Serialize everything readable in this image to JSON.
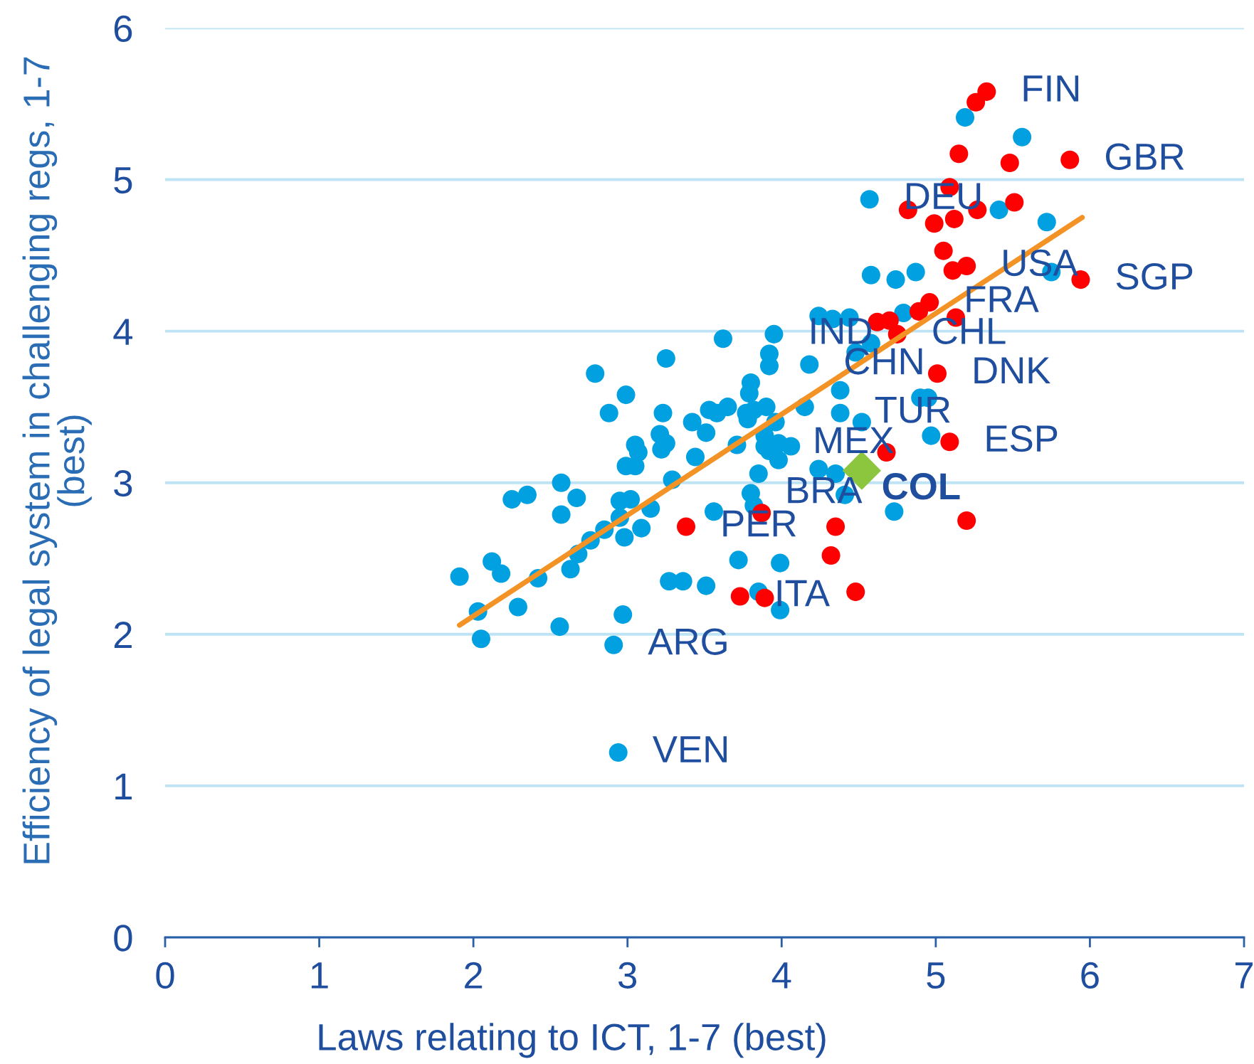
{
  "chart_data": {
    "type": "scatter",
    "xlabel": "Laws relating to ICT, 1-7 (best)",
    "ylabel": "Efficiency of legal system in challenging regs, 1-7 (best)",
    "xlim": [
      0,
      7
    ],
    "ylim": [
      0,
      6
    ],
    "xticks": [
      0,
      1,
      2,
      3,
      4,
      5,
      6,
      7
    ],
    "yticks": [
      0,
      1,
      2,
      3,
      4,
      5,
      6
    ],
    "grid": "y",
    "marker": "circle",
    "series": [
      {
        "color": "#00a0e1",
        "x": [
          3.62,
          3.95,
          3.25,
          3.92,
          3.92,
          4.18,
          2.79,
          2.99,
          3.8,
          3.79,
          2.88,
          3.23,
          3.53,
          3.58,
          3.65,
          3.42,
          3.51,
          3.77,
          3.82,
          3.9,
          3.78,
          3.96,
          4.15,
          3.21,
          3.25,
          3.22,
          3.05,
          3.07,
          2.99,
          3.05,
          3.44,
          3.71,
          3.89,
          3.89,
          3.98,
          4.06,
          3.98,
          3.92,
          3.85,
          4.24,
          3.29,
          2.57,
          2.67,
          2.25,
          2.35,
          2.57,
          2.95,
          3.02,
          2.95,
          3.15,
          3.09,
          2.98,
          2.85,
          2.76,
          2.68,
          2.63,
          2.42,
          2.12,
          2.18,
          1.91,
          2.03,
          2.29,
          2.56,
          2.05,
          2.97,
          2.91,
          3.56,
          3.8,
          3.82,
          3.72,
          3.99,
          3.27,
          3.36,
          3.51,
          3.85,
          3.99,
          2.94,
          4.35,
          4.41,
          4.38,
          4.38,
          4.52,
          4.9,
          4.95,
          4.97,
          4.73,
          5.19,
          5.56,
          4.57,
          5.41,
          5.72,
          4.58,
          4.74,
          4.87,
          5.75,
          4.79,
          4.24,
          4.33,
          4.44,
          4.58,
          4.48
        ],
        "values": [
          3.95,
          3.98,
          3.82,
          3.85,
          3.77,
          3.78,
          3.72,
          3.58,
          3.66,
          3.59,
          3.46,
          3.46,
          3.48,
          3.46,
          3.5,
          3.4,
          3.33,
          3.46,
          3.48,
          3.5,
          3.42,
          3.4,
          3.5,
          3.32,
          3.26,
          3.22,
          3.25,
          3.2,
          3.11,
          3.11,
          3.17,
          3.25,
          3.31,
          3.24,
          3.26,
          3.24,
          3.15,
          3.21,
          3.06,
          3.09,
          3.02,
          3.0,
          2.9,
          2.89,
          2.92,
          2.79,
          2.88,
          2.89,
          2.77,
          2.83,
          2.7,
          2.64,
          2.69,
          2.62,
          2.53,
          2.43,
          2.37,
          2.48,
          2.4,
          2.38,
          2.15,
          2.18,
          2.05,
          1.97,
          2.13,
          1.93,
          2.81,
          2.93,
          2.85,
          2.49,
          2.47,
          2.35,
          2.35,
          2.32,
          2.28,
          2.16,
          1.22,
          3.06,
          2.92,
          3.61,
          3.46,
          3.4,
          3.56,
          3.56,
          3.31,
          2.81,
          5.41,
          5.28,
          4.87,
          4.8,
          4.72,
          4.37,
          4.34,
          4.39,
          4.39,
          4.12,
          4.1,
          4.08,
          4.09,
          3.92,
          3.86
        ]
      },
      {
        "color": "#ff0000",
        "x": [
          5.33,
          5.26,
          5.15,
          5.48,
          5.87,
          5.09,
          4.82,
          5.27,
          5.51,
          4.99,
          5.12,
          5.05,
          5.11,
          5.2,
          5.94,
          4.96,
          4.89,
          5.13,
          4.62,
          4.7,
          4.75,
          5.01,
          5.09,
          4.68,
          3.87,
          3.38,
          4.35,
          5.2,
          4.32,
          3.73,
          3.89,
          4.48
        ],
        "values": [
          5.58,
          5.51,
          5.17,
          5.11,
          5.13,
          4.95,
          4.8,
          4.8,
          4.85,
          4.71,
          4.74,
          4.53,
          4.4,
          4.43,
          4.34,
          4.19,
          4.13,
          4.09,
          4.06,
          4.07,
          3.98,
          3.72,
          3.27,
          3.2,
          2.8,
          2.71,
          2.71,
          2.75,
          2.52,
          2.25,
          2.24,
          2.28
        ]
      },
      {
        "type": "line",
        "color": "#f39325",
        "marker": "none",
        "line_style": "solid",
        "x": [
          1.91,
          5.95
        ],
        "values": [
          2.06,
          4.75
        ]
      },
      {
        "name": "COL",
        "color": "#8cc63f",
        "marker": "diamond",
        "x": [
          4.52
        ],
        "values": [
          3.08
        ]
      }
    ],
    "annotations": [
      {
        "text": "FIN",
        "x": 5.33,
        "y": 5.58
      },
      {
        "text": "GBR",
        "x": 5.87,
        "y": 5.13
      },
      {
        "text": "DEU",
        "x": 4.57,
        "y": 4.87
      },
      {
        "text": "USA",
        "x": 5.2,
        "y": 4.43
      },
      {
        "text": "SGP",
        "x": 5.94,
        "y": 4.34
      },
      {
        "text": "FRA",
        "x": 4.96,
        "y": 4.19
      },
      {
        "text": "IND",
        "x": 3.95,
        "y": 3.98
      },
      {
        "text": "CHL",
        "x": 4.75,
        "y": 3.98
      },
      {
        "text": "CHN",
        "x": 4.18,
        "y": 3.78
      },
      {
        "text": "DNK",
        "x": 5.01,
        "y": 3.72
      },
      {
        "text": "TUR",
        "x": 4.38,
        "y": 3.46
      },
      {
        "text": "MEX",
        "x": 3.98,
        "y": 3.26
      },
      {
        "text": "ESP",
        "x": 5.09,
        "y": 3.27
      },
      {
        "text": "BRA",
        "x": 3.8,
        "y": 2.93
      },
      {
        "text": "PER",
        "x": 3.38,
        "y": 2.71
      },
      {
        "text": "ITA",
        "x": 3.73,
        "y": 2.25
      },
      {
        "text": "ARG",
        "x": 2.91,
        "y": 1.93
      },
      {
        "text": "VEN",
        "x": 2.94,
        "y": 1.22
      }
    ]
  }
}
